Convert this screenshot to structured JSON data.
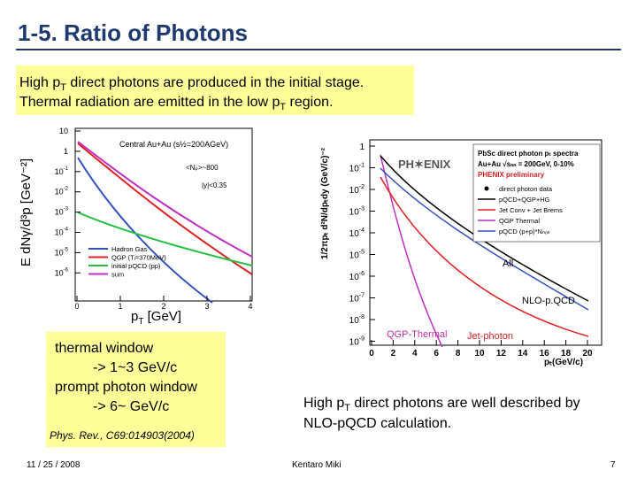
{
  "title": "1-5. Ratio of Photons",
  "intro": [
    {
      "before": "High p",
      "sub": "T",
      "after": " direct photons are produced in the initial stage."
    },
    {
      "before": "Thermal radiation are emitted in the low p",
      "sub": "T",
      "after": " region."
    }
  ],
  "left_figure": {
    "y_label": "E dNγ/d³p  [GeV⁻²]",
    "x_label": {
      "before": "p",
      "sub": "T",
      "after": " [GeV]"
    },
    "x_ticks": [
      "0",
      "1",
      "2",
      "3",
      "4"
    ],
    "y_ticks": [
      {
        "base": "10"
      },
      {
        "base": "1"
      },
      {
        "base": "10",
        "exp": "-1"
      },
      {
        "base": "10",
        "exp": "-2"
      },
      {
        "base": "10",
        "exp": "-3"
      },
      {
        "base": "10",
        "exp": "-4"
      },
      {
        "base": "10",
        "exp": "-5"
      },
      {
        "base": "10",
        "exp": "-6"
      }
    ],
    "annotations": [
      "Central Au+Au (s½=200AGeV)",
      "<Nₚ>~800",
      "|y|<0.35"
    ],
    "legend": [
      "Hadron Gas",
      "QGP (Tᵢ=370MeV)",
      "initial pQCD (pp)",
      "sum"
    ]
  },
  "left_box": {
    "lines": [
      "thermal window",
      "-> 1~3 GeV/c",
      "prompt photon window",
      "-> 6~  GeV/c"
    ],
    "reference": "Phys. Rev., C69:014903(2004)"
  },
  "right_figure": {
    "y_label": "1/2πpₜ d²N/dpₜdy (GeV/c)⁻²",
    "x_label": "pₜ(GeV/c)",
    "x_ticks": [
      "0",
      "2",
      "4",
      "6",
      "8",
      "10",
      "12",
      "14",
      "16",
      "18",
      "20"
    ],
    "y_ticks": [
      {
        "base": "1"
      },
      {
        "base": "10",
        "exp": "-1"
      },
      {
        "base": "10",
        "exp": "-2"
      },
      {
        "base": "10",
        "exp": "-3"
      },
      {
        "base": "10",
        "exp": "-4"
      },
      {
        "base": "10",
        "exp": "-5"
      },
      {
        "base": "10",
        "exp": "-6"
      },
      {
        "base": "10",
        "exp": "-7"
      },
      {
        "base": "10",
        "exp": "-8"
      },
      {
        "base": "10",
        "exp": "-9"
      }
    ],
    "logo": "PH✶ENIX",
    "legend_header": [
      "PbSc direct photon pₜ spectra",
      "Au+Au √sₙₙ = 200GeV, 0-10%",
      "PHENIX preliminary"
    ],
    "legend": [
      "direct photon data",
      "pQCD+QGP+HG",
      "Jet Conv + Jet Brems",
      "QGP Thermal",
      "pQCD (p+p)*Nₙₒₗₗ"
    ],
    "annotations": {
      "all": "All",
      "nlo": "NLO-p.QCD",
      "qgp": "QGP-Thermal",
      "jet": "Jet-photon"
    }
  },
  "conclusion": [
    {
      "before": "High p",
      "sub": "T",
      "after": " direct photons are well described by"
    },
    {
      "before": "NLO-pQCD calculation."
    }
  ],
  "footer": {
    "date": "11 / 25 / 2008",
    "author": "Kentaro Miki",
    "page": "7"
  }
}
